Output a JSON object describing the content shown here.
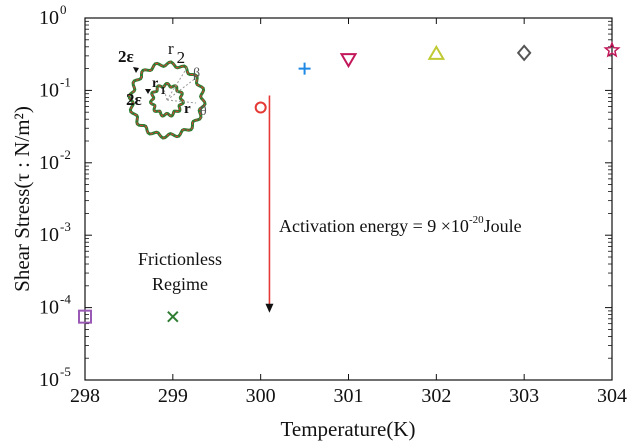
{
  "chart_data": {
    "type": "scatter",
    "xlabel": "Temperature(K)",
    "ylabel": "Shear Stress(τ : N/m²)",
    "xlim": [
      298,
      304
    ],
    "ylim": [
      1e-05,
      1
    ],
    "yscale": "log",
    "grid": false,
    "x_ticks": [
      "298",
      "299",
      "300",
      "301",
      "302",
      "303",
      "304"
    ],
    "y_ticks": [
      {
        "value": 1e-05,
        "base": "10",
        "exp": "-5"
      },
      {
        "value": 0.0001,
        "base": "10",
        "exp": "-4"
      },
      {
        "value": 0.001,
        "base": "10",
        "exp": "-3"
      },
      {
        "value": 0.01,
        "base": "10",
        "exp": "-2"
      },
      {
        "value": 0.1,
        "base": "10",
        "exp": "-1"
      },
      {
        "value": 1,
        "base": "10",
        "exp": "0"
      }
    ],
    "points": [
      {
        "x": 298,
        "y": 7.5e-05,
        "marker": "square",
        "color": "#9b59b6"
      },
      {
        "x": 299,
        "y": 7.5e-05,
        "marker": "x",
        "color": "#2e7d32"
      },
      {
        "x": 300,
        "y": 0.058,
        "marker": "circle",
        "color": "#e53935"
      },
      {
        "x": 300.5,
        "y": 0.2,
        "marker": "plus",
        "color": "#1e88e5"
      },
      {
        "x": 301,
        "y": 0.27,
        "marker": "triangle-down",
        "color": "#c2185b"
      },
      {
        "x": 302,
        "y": 0.32,
        "marker": "triangle-up",
        "color": "#c0ca33"
      },
      {
        "x": 303,
        "y": 0.33,
        "marker": "diamond",
        "color": "#555555"
      },
      {
        "x": 304,
        "y": 0.36,
        "marker": "star",
        "color": "#c2185b"
      }
    ],
    "arrow": {
      "x": 300.1,
      "y_from": 0.058,
      "y_to": 8.5e-05,
      "color": "#e53935"
    },
    "annotations": {
      "activation": {
        "prefix": "Activation energy = 9 ×10",
        "exp": "-20",
        "suffix": "Joule"
      },
      "regime_line1": "Frictionless",
      "regime_line2": "Regime"
    },
    "inset_labels": {
      "two_eps_outer": "2ε",
      "r2": "r",
      "r2_sub": "2",
      "beta": "β",
      "two_eps_inner": "2ε",
      "r1": "r",
      "r1_sub": "1",
      "r": "r",
      "theta": "θ"
    }
  }
}
